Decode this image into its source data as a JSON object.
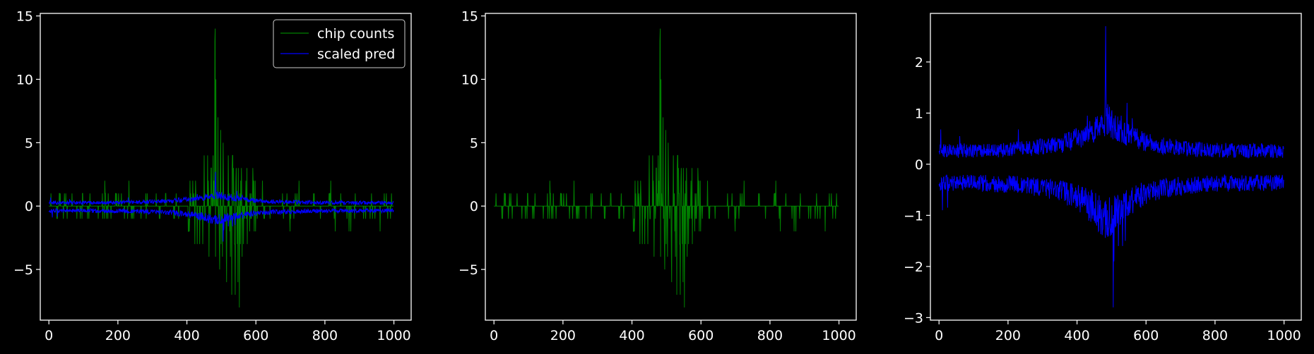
{
  "theme": {
    "background": "#000000",
    "axes_color": "#ffffff",
    "text_color": "#ffffff"
  },
  "colors": {
    "chip": "#008000",
    "pred": "#0000ff"
  },
  "chart_data": [
    {
      "type": "line",
      "title": "",
      "xlabel": "",
      "ylabel": "",
      "xlim": [
        -25,
        1050
      ],
      "ylim": [
        -9,
        15.2
      ],
      "xticks": [
        0,
        200,
        400,
        600,
        800,
        1000
      ],
      "xtick_labels": [
        "0",
        "200",
        "400",
        "600",
        "800",
        "1000"
      ],
      "yticks": [
        -5,
        0,
        5,
        10,
        15
      ],
      "ytick_labels": [
        "−5",
        "0",
        "5",
        "10",
        "15"
      ],
      "legend": {
        "position": "upper-right",
        "entries": [
          {
            "label": "chip counts",
            "color": "#008000"
          },
          {
            "label": "scaled pred",
            "color": "#0000ff"
          }
        ]
      },
      "grid": false,
      "series": [
        {
          "name": "chip counts",
          "color": "#008000",
          "kind": "sparse-counts",
          "n": 1000,
          "peak": {
            "x": 482,
            "values": [
              13,
              14,
              10
            ]
          },
          "core_range": [
            400,
            600
          ],
          "min": -8,
          "max": 14
        },
        {
          "name": "scaled pred",
          "color": "#0000ff",
          "kind": "two-band-envelope",
          "n": 1000,
          "upper_baseline": 0.15,
          "lower_baseline": -0.3,
          "peak": {
            "x": 483,
            "value": 2.7
          },
          "trough": {
            "x": 505,
            "value": -2.8
          }
        }
      ]
    },
    {
      "type": "line",
      "title": "",
      "xlabel": "",
      "ylabel": "",
      "xlim": [
        -25,
        1050
      ],
      "ylim": [
        -9,
        15.2
      ],
      "xticks": [
        0,
        200,
        400,
        600,
        800,
        1000
      ],
      "xtick_labels": [
        "0",
        "200",
        "400",
        "600",
        "800",
        "1000"
      ],
      "yticks": [
        -5,
        0,
        5,
        10,
        15
      ],
      "ytick_labels": [
        "−5",
        "0",
        "5",
        "10",
        "15"
      ],
      "grid": false,
      "series": [
        {
          "name": "",
          "color": "#008000",
          "kind": "sparse-counts",
          "n": 1000,
          "peak": {
            "x": 482,
            "values": [
              13,
              14,
              10
            ]
          },
          "core_range": [
            400,
            600
          ],
          "min": -8,
          "max": 14
        }
      ]
    },
    {
      "type": "line",
      "title": "",
      "xlabel": "",
      "ylabel": "",
      "xlim": [
        -25,
        1050
      ],
      "ylim": [
        -3.05,
        2.95
      ],
      "xticks": [
        0,
        200,
        400,
        600,
        800,
        1000
      ],
      "xtick_labels": [
        "0",
        "200",
        "400",
        "600",
        "800",
        "1000"
      ],
      "yticks": [
        -3,
        -2,
        -1,
        0,
        1,
        2
      ],
      "ytick_labels": [
        "−3",
        "−2",
        "−1",
        "0",
        "1",
        "2"
      ],
      "grid": false,
      "series": [
        {
          "name": "",
          "color": "#0000ff",
          "kind": "two-band-envelope",
          "n": 1000,
          "upper_baseline": 0.15,
          "lower_baseline": -0.3,
          "peak": {
            "x": 483,
            "value": 2.7
          },
          "trough": {
            "x": 505,
            "value": -2.8
          }
        }
      ]
    }
  ]
}
